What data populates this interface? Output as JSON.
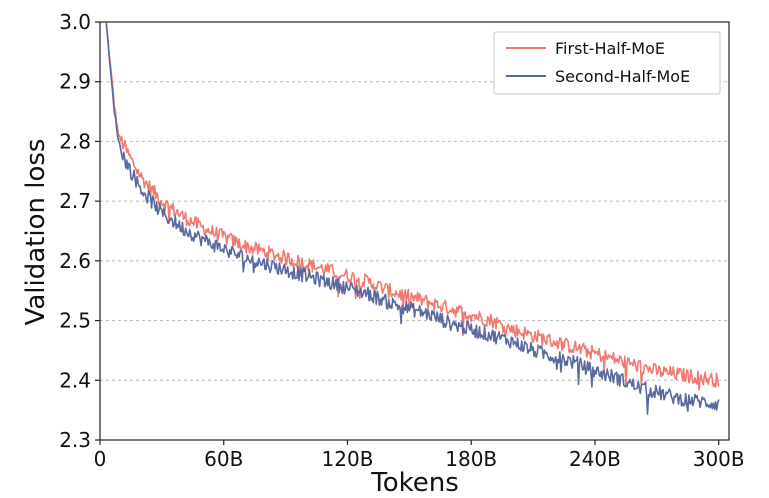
{
  "chart_data": {
    "type": "line",
    "xlabel": "Tokens",
    "ylabel": "Validation loss",
    "xlim": [
      0,
      305
    ],
    "ylim": [
      2.3,
      3.0
    ],
    "x_unit": "B tokens",
    "xticks": [
      0,
      60,
      120,
      180,
      240,
      300
    ],
    "xtick_labels": [
      "0",
      "60B",
      "120B",
      "180B",
      "240B",
      "300B"
    ],
    "yticks": [
      2.3,
      2.4,
      2.5,
      2.6,
      2.7,
      2.8,
      2.9,
      3.0
    ],
    "ytick_labels": [
      "2.3",
      "2.4",
      "2.5",
      "2.6",
      "2.7",
      "2.8",
      "2.9",
      "3.0"
    ],
    "grid": "horizontal dashed",
    "legend_position": "top-right",
    "series": [
      {
        "name": "First-Half-MoE",
        "color": "#f07a6f",
        "x": [
          3,
          5,
          7,
          9,
          12,
          15,
          20,
          25,
          30,
          40,
          50,
          60,
          70,
          80,
          90,
          100,
          110,
          120,
          130,
          140,
          150,
          160,
          170,
          180,
          190,
          200,
          210,
          220,
          230,
          240,
          250,
          260,
          270,
          280,
          290,
          300
        ],
        "y": [
          3.0,
          2.93,
          2.86,
          2.81,
          2.79,
          2.77,
          2.74,
          2.72,
          2.7,
          2.675,
          2.655,
          2.64,
          2.625,
          2.615,
          2.605,
          2.595,
          2.585,
          2.575,
          2.565,
          2.55,
          2.54,
          2.53,
          2.52,
          2.51,
          2.5,
          2.485,
          2.475,
          2.465,
          2.455,
          2.445,
          2.435,
          2.425,
          2.415,
          2.41,
          2.405,
          2.4
        ]
      },
      {
        "name": "Second-Half-MoE",
        "color": "#5a6aa0",
        "x": [
          3,
          5,
          7,
          9,
          12,
          15,
          20,
          25,
          30,
          40,
          50,
          60,
          70,
          80,
          90,
          100,
          110,
          120,
          130,
          140,
          150,
          160,
          170,
          180,
          190,
          200,
          210,
          220,
          230,
          240,
          250,
          260,
          270,
          280,
          290,
          300
        ],
        "y": [
          3.0,
          2.92,
          2.85,
          2.8,
          2.77,
          2.75,
          2.72,
          2.7,
          2.68,
          2.655,
          2.635,
          2.62,
          2.605,
          2.595,
          2.585,
          2.575,
          2.565,
          2.555,
          2.545,
          2.53,
          2.52,
          2.51,
          2.495,
          2.485,
          2.475,
          2.465,
          2.45,
          2.44,
          2.43,
          2.415,
          2.405,
          2.39,
          2.38,
          2.37,
          2.365,
          2.36
        ]
      }
    ]
  }
}
